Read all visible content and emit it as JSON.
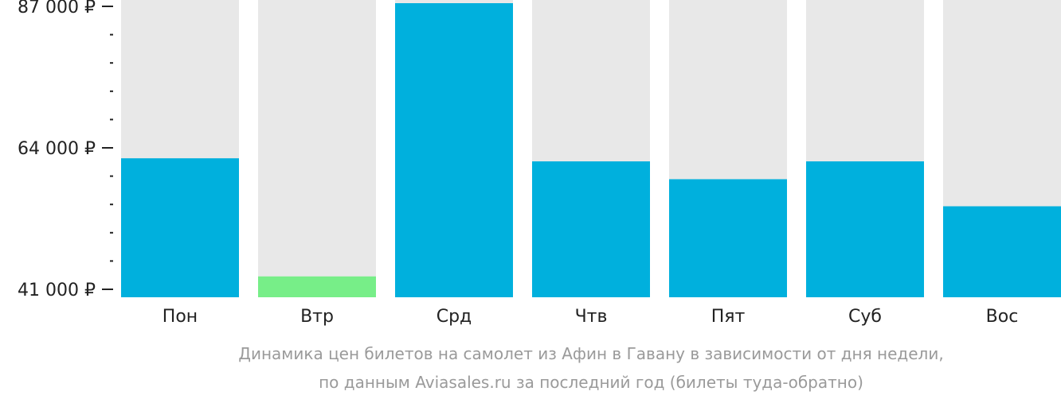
{
  "chart_data": {
    "type": "bar",
    "categories": [
      "Пон",
      "Втр",
      "Срд",
      "Чтв",
      "Пят",
      "Суб",
      "Вос"
    ],
    "values": [
      62300,
      43100,
      92800,
      61800,
      58900,
      61800,
      54500
    ],
    "ylim": [
      41000,
      87000
    ],
    "y_tick_labels": [
      "87 000 ₽",
      "64 000 ₽",
      "41 000 ₽"
    ],
    "y_tick_values": [
      87000,
      64000,
      41000
    ],
    "y_minor_step": 4600,
    "caption_lines": [
      "Динамика цен билетов на самолет из Афин в Гавану в зависимости от дня недели,",
      "по данным Aviasales.ru за последний год (билеты туда-обратно)"
    ],
    "colors": {
      "bar": "#00b0dd",
      "bar_cheapest": "#77ee88",
      "background_bar": "#e8e8e8",
      "axis": "#222222",
      "caption": "#9a9a9a"
    },
    "cheapest_index": 1,
    "grid": false,
    "legend": "none"
  }
}
